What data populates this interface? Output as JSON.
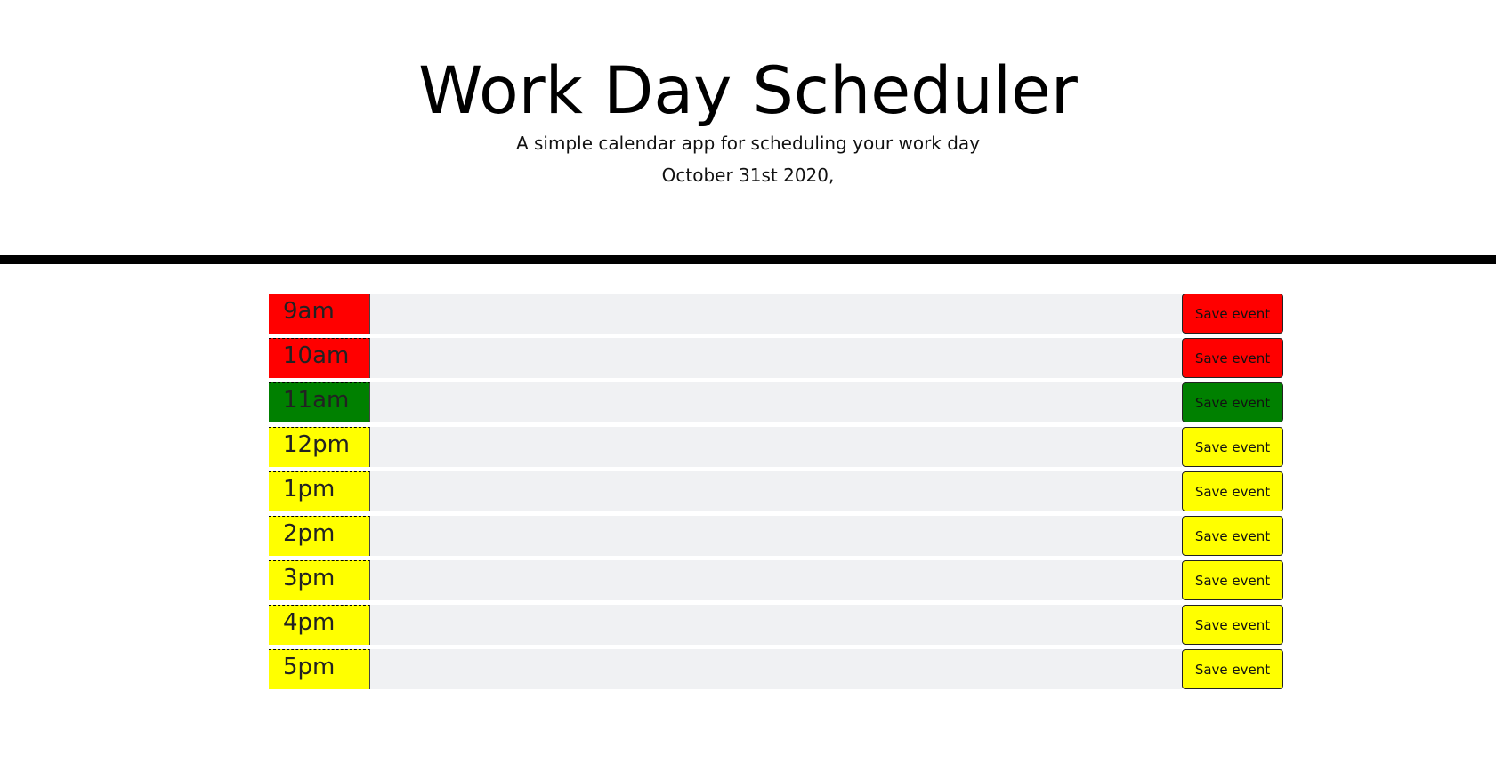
{
  "header": {
    "title": "Work Day Scheduler",
    "subtitle": "A simple calendar app for scheduling your work day",
    "date": "October 31st 2020,"
  },
  "colors": {
    "past": "#ff0000",
    "present": "#008000",
    "future": "#ffff00",
    "event_bg": "#f0f1f3"
  },
  "rows": [
    {
      "hour": "9am",
      "status": "past",
      "event": "",
      "save_label": "Save event"
    },
    {
      "hour": "10am",
      "status": "past",
      "event": "",
      "save_label": "Save event"
    },
    {
      "hour": "11am",
      "status": "present",
      "event": "",
      "save_label": "Save event"
    },
    {
      "hour": "12pm",
      "status": "future",
      "event": "",
      "save_label": "Save event"
    },
    {
      "hour": "1pm",
      "status": "future",
      "event": "",
      "save_label": "Save event"
    },
    {
      "hour": "2pm",
      "status": "future",
      "event": "",
      "save_label": "Save event"
    },
    {
      "hour": "3pm",
      "status": "future",
      "event": "",
      "save_label": "Save event"
    },
    {
      "hour": "4pm",
      "status": "future",
      "event": "",
      "save_label": "Save event"
    },
    {
      "hour": "5pm",
      "status": "future",
      "event": "",
      "save_label": "Save event"
    }
  ]
}
